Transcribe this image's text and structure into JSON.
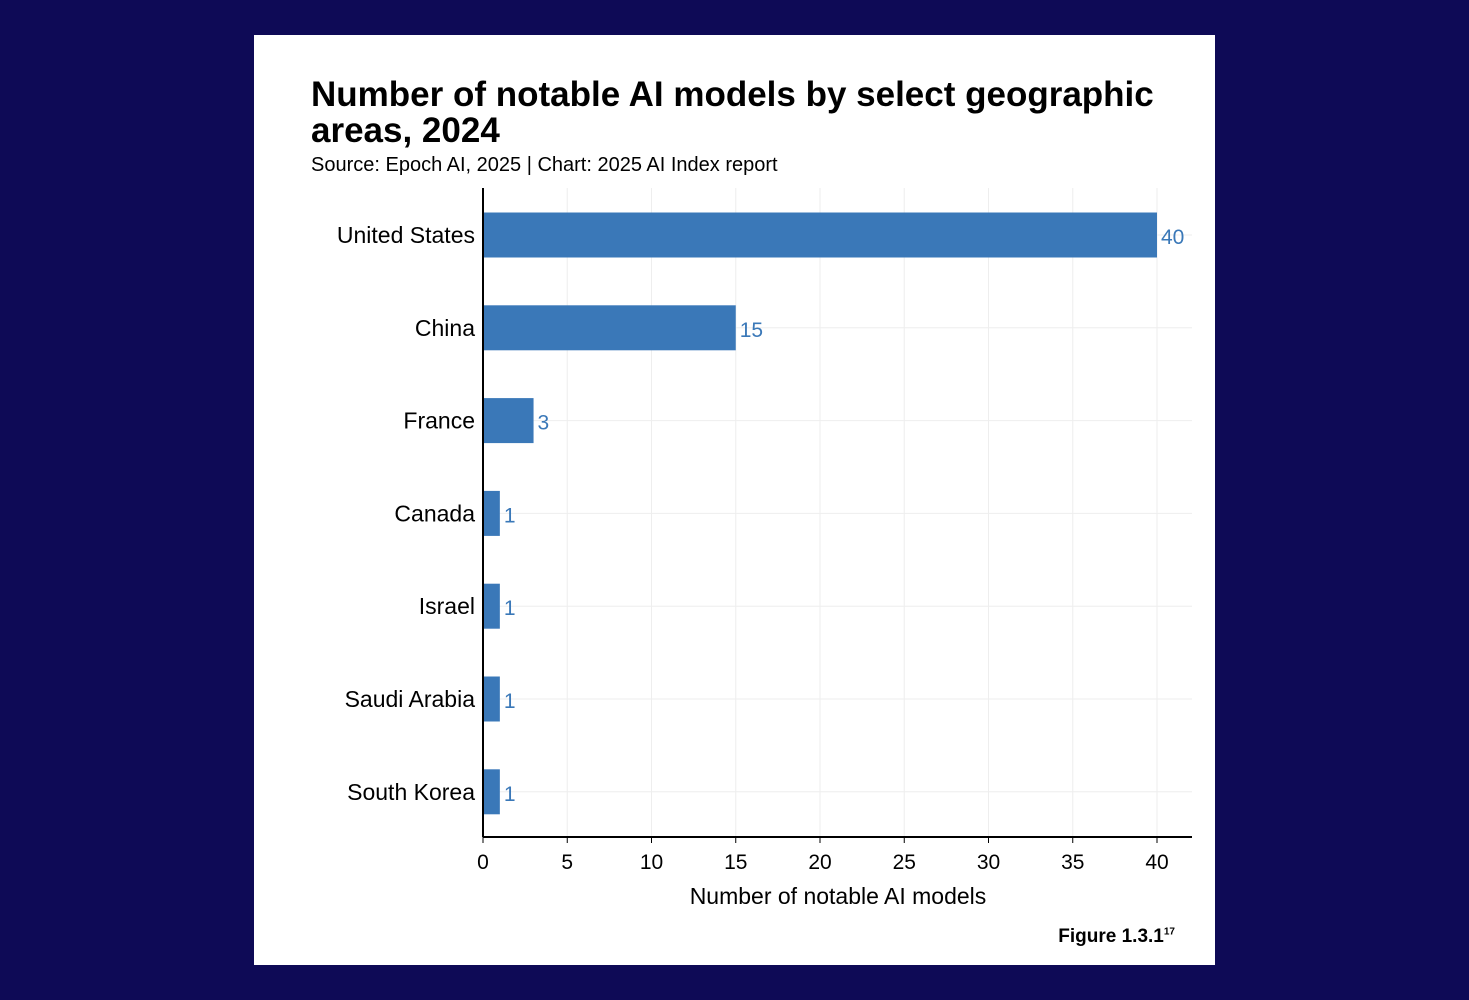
{
  "header": {
    "title": "Number of notable AI models by select geographic areas, 2024",
    "subtitle": "Source: Epoch AI, 2025 | Chart: 2025 AI Index report"
  },
  "footer": {
    "figure_label": "Figure 1.3.1",
    "figure_sup": "17"
  },
  "colors": {
    "background": "#0e0a56",
    "bar": "#3a78b8",
    "data_label": "#3a78b8"
  },
  "chart_data": {
    "type": "bar",
    "orientation": "horizontal",
    "categories": [
      "United States",
      "China",
      "France",
      "Canada",
      "Israel",
      "Saudi Arabia",
      "South Korea"
    ],
    "values": [
      40,
      15,
      3,
      1,
      1,
      1,
      1
    ],
    "title": "Number of notable AI models by select geographic areas, 2024",
    "subtitle": "Source: Epoch AI, 2025 | Chart: 2025 AI Index report",
    "xlabel": "Number of notable AI models",
    "ylabel": "",
    "xlim": [
      0,
      42
    ],
    "xticks": [
      0,
      5,
      10,
      15,
      20,
      25,
      30,
      35,
      40
    ],
    "grid": true,
    "data_labels": true
  }
}
